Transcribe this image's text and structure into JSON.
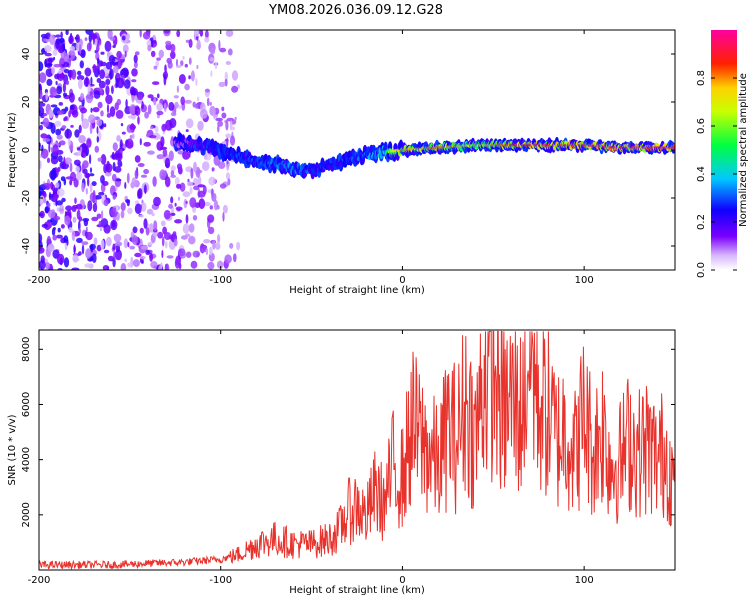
{
  "title": "YM08.2026.036.09.12.G28",
  "chart_data": [
    {
      "type": "heatmap",
      "title": "YM08.2026.036.09.12.G28",
      "xlabel": "Height of straight line (km)",
      "ylabel": "Frequency (Hz)",
      "xlim": [
        -200,
        150
      ],
      "ylim": [
        -50,
        50
      ],
      "xticks": [
        -200,
        -100,
        0,
        100
      ],
      "yticks": [
        -40,
        -20,
        0,
        20,
        40
      ],
      "colorbar": {
        "label": "Normalized spectral amplitude",
        "range": [
          0,
          1
        ],
        "ticks": [
          0.0,
          0.2,
          0.4,
          0.6,
          0.8
        ],
        "tick_labels": [
          "0.0",
          "0.2",
          "0.4",
          "0.6",
          "0.8"
        ],
        "colormap": "rainbow (violet-blue-cyan-green-yellow-red-magenta)"
      },
      "signal_trace": {
        "height_km": [
          -120,
          -110,
          -100,
          -90,
          -80,
          -70,
          -60,
          -50,
          -40,
          -30,
          -20,
          -10,
          0,
          20,
          40,
          60,
          80,
          100,
          120,
          150
        ],
        "frequency_hz": [
          3,
          2,
          0,
          -3,
          -5,
          -6,
          -8,
          -8,
          -7,
          -4,
          -2,
          -1,
          0,
          1,
          2,
          2,
          2,
          2,
          1,
          1
        ],
        "amplitude": [
          0.15,
          0.25,
          0.35,
          0.35,
          0.35,
          0.4,
          0.4,
          0.35,
          0.3,
          0.35,
          0.4,
          0.55,
          0.75,
          0.8,
          0.65,
          0.85,
          0.9,
          0.95,
          0.95,
          0.95
        ]
      },
      "noise_region_km": [
        -200,
        -100
      ]
    },
    {
      "type": "line",
      "xlabel": "Height of straight line (km)",
      "ylabel": "SNR (10 * v/v)",
      "xlim": [
        -200,
        150
      ],
      "ylim": [
        0,
        8700
      ],
      "xticks": [
        -200,
        -100,
        0,
        100
      ],
      "yticks": [
        2000,
        4000,
        6000,
        8000
      ],
      "series": [
        {
          "name": "SNR",
          "color": "#e8322c",
          "x": [
            -200,
            -180,
            -160,
            -140,
            -120,
            -110,
            -100,
            -90,
            -80,
            -70,
            -60,
            -50,
            -40,
            -35,
            -30,
            -25,
            -20,
            -15,
            -10,
            -5,
            0,
            5,
            10,
            15,
            20,
            25,
            30,
            35,
            40,
            45,
            50,
            55,
            60,
            65,
            70,
            75,
            80,
            85,
            90,
            95,
            100,
            105,
            110,
            115,
            120,
            125,
            130,
            135,
            140,
            145,
            150
          ],
          "values": [
            200,
            200,
            200,
            250,
            300,
            350,
            400,
            600,
            1000,
            1200,
            1000,
            1000,
            1200,
            1500,
            2200,
            2500,
            2000,
            3000,
            2500,
            4000,
            3500,
            5500,
            5000,
            4500,
            4000,
            5500,
            5000,
            6500,
            5000,
            7500,
            8000,
            6000,
            6500,
            6000,
            8600,
            6500,
            6000,
            5000,
            5500,
            4500,
            6000,
            4500,
            5500,
            4000,
            4200,
            5000,
            4500,
            4800,
            4200,
            4600,
            3000
          ]
        }
      ]
    }
  ]
}
